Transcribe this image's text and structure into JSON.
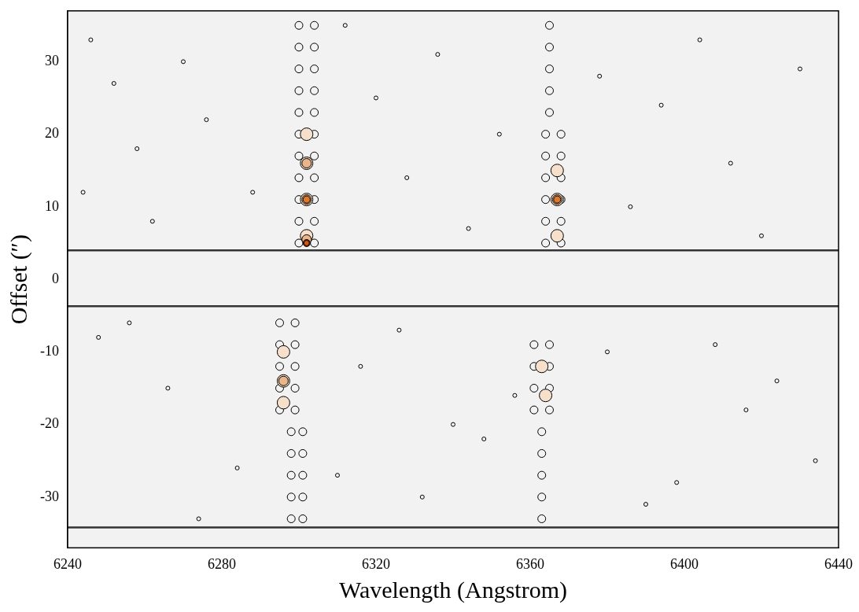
{
  "chart_data": {
    "type": "scatter",
    "x_label": "Wavelength (Angstrom)",
    "y_label": "Offset (″)",
    "xlim": [
      6240,
      6440
    ],
    "xticks": [
      6240,
      6280,
      6320,
      6360,
      6400,
      6440
    ],
    "ylim": [
      -37,
      37
    ],
    "yticks": [
      -30,
      -20,
      -10,
      0,
      10,
      20,
      30
    ],
    "grid": false,
    "hlines": [
      4,
      -3.7,
      -34.2
    ],
    "series": [
      {
        "color": "#000000",
        "marker": "ring",
        "x": [
          6300,
          6304,
          6300,
          6304,
          6300,
          6304,
          6300,
          6304,
          6300,
          6304,
          6300,
          6304,
          6300,
          6304,
          6300,
          6304,
          6300,
          6304,
          6300,
          6304,
          6300,
          6304,
          6295,
          6299,
          6295,
          6299,
          6295,
          6299,
          6295,
          6299,
          6295,
          6299,
          6298,
          6301,
          6298,
          6301,
          6298,
          6301,
          6298,
          6301,
          6298,
          6301,
          6364,
          6368,
          6364,
          6368,
          6364,
          6368,
          6364,
          6368,
          6364,
          6368,
          6364,
          6368,
          6365,
          6365,
          6365,
          6365,
          6365,
          6361,
          6365,
          6361,
          6365,
          6361,
          6365,
          6361,
          6365,
          6363,
          6363,
          6363,
          6363,
          6363
        ],
        "y": [
          5,
          5,
          8,
          8,
          11,
          11,
          14,
          14,
          17,
          17,
          20,
          20,
          23,
          23,
          26,
          26,
          29,
          29,
          32,
          32,
          35,
          35,
          -6,
          -6,
          -9,
          -9,
          -12,
          -12,
          -15,
          -15,
          -18,
          -18,
          -21,
          -21,
          -24,
          -24,
          -27,
          -27,
          -30,
          -30,
          -33,
          -33,
          5,
          5,
          8,
          8,
          11,
          11,
          14,
          14,
          17,
          17,
          20,
          20,
          23,
          26,
          29,
          32,
          35,
          -9,
          -9,
          -12,
          -12,
          -15,
          -15,
          -18,
          -18,
          -21,
          -24,
          -27,
          -30,
          -33
        ]
      },
      {
        "color": "#000000",
        "marker": "ring",
        "x": [
          6246,
          6252,
          6258,
          6262,
          6270,
          6276,
          6288,
          6312,
          6320,
          6328,
          6336,
          6344,
          6352,
          6378,
          6386,
          6394,
          6404,
          6412,
          6420,
          6430,
          6248,
          6266,
          6284,
          6316,
          6332,
          6348,
          6380,
          6398,
          6416,
          6434,
          6256,
          6274,
          6326,
          6340,
          6390,
          6408,
          6424,
          6244,
          6310,
          6356
        ],
        "y": [
          33,
          27,
          18,
          8,
          30,
          22,
          12,
          35,
          25,
          14,
          31,
          7,
          20,
          28,
          10,
          24,
          33,
          16,
          6,
          29,
          -8,
          -15,
          -26,
          -12,
          -30,
          -22,
          -10,
          -28,
          -18,
          -25,
          -6,
          -33,
          -7,
          -20,
          -31,
          -9,
          -14,
          12,
          -27,
          -16
        ]
      },
      {
        "color": "#f6e0cc",
        "marker": "dot",
        "x": [
          6302,
          6302,
          6302,
          6302,
          6367,
          6367,
          6367,
          6296,
          6296,
          6296,
          6363,
          6364
        ],
        "y": [
          6,
          11,
          16,
          20,
          6,
          11,
          15,
          -10,
          -14,
          -17,
          -12,
          -16
        ]
      },
      {
        "color": "#eab58a",
        "marker": "dot",
        "x": [
          6302,
          6302,
          6302,
          6367,
          6296
        ],
        "y": [
          5.5,
          11,
          16,
          11,
          -14
        ]
      },
      {
        "color": "#e0782a",
        "marker": "dot",
        "x": [
          6302,
          6302,
          6367
        ],
        "y": [
          5,
          11,
          11
        ]
      },
      {
        "color": "#d2541a",
        "marker": "dot",
        "x": [
          6302
        ],
        "y": [
          5
        ]
      }
    ]
  }
}
